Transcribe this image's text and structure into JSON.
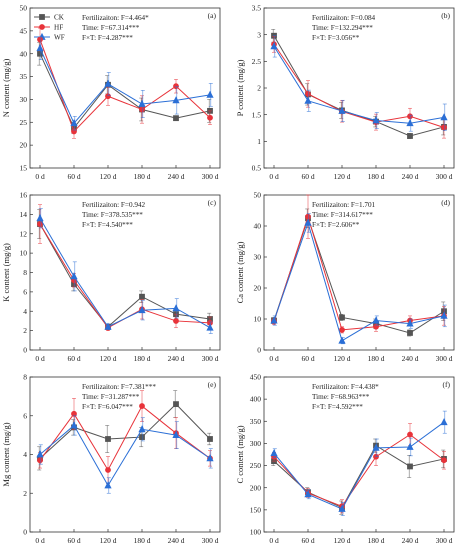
{
  "legend": [
    {
      "name": "CK",
      "color": "#555555",
      "marker": "square"
    },
    {
      "name": "HF",
      "color": "#e8333a",
      "marker": "circle"
    },
    {
      "name": "WF",
      "color": "#2b6fd6",
      "marker": "triangle"
    }
  ],
  "chart_data": [
    {
      "type": "line",
      "panel": "(a)",
      "ylabel": "N content (mg/g)",
      "ylim": [
        15,
        50
      ],
      "yticks": [
        15,
        20,
        25,
        30,
        35,
        40,
        45,
        50
      ],
      "x": [
        "0 d",
        "60 d",
        "120 d",
        "180 d",
        "240 d",
        "300 d"
      ],
      "stats": [
        "Fertilizaiton:  F=4.464*",
        "Time:  F=67.314***",
        "F×T:  F=4.287***"
      ],
      "series": [
        {
          "name": "CK",
          "values": [
            40.0,
            23.8,
            33.2,
            27.8,
            25.9,
            27.5
          ],
          "errors": [
            2.5,
            1.2,
            2.0,
            2.5,
            0.5,
            2.5
          ]
        },
        {
          "name": "HF",
          "values": [
            43.1,
            23.0,
            30.7,
            27.8,
            32.9,
            26.0
          ],
          "errors": [
            2.5,
            1.5,
            2.0,
            3.0,
            1.5,
            1.5
          ]
        },
        {
          "name": "WF",
          "values": [
            41.2,
            24.8,
            33.4,
            29.0,
            29.8,
            31.0
          ],
          "errors": [
            2.5,
            1.5,
            2.5,
            3.0,
            3.0,
            2.5
          ]
        }
      ]
    },
    {
      "type": "line",
      "panel": "(b)",
      "ylabel": "P content (mg/g)",
      "ylim": [
        0.5,
        3.5
      ],
      "yticks": [
        0.5,
        1.0,
        1.5,
        2.0,
        2.5,
        3.0,
        3.5
      ],
      "x": [
        "0 d",
        "60 d",
        "120 d",
        "180 d",
        "240 d",
        "300 d"
      ],
      "stats": [
        "Fertilizaiton:  F=0.084",
        "Time:  F=132.294***",
        "F×T:  F=3.056**"
      ],
      "series": [
        {
          "name": "CK",
          "values": [
            2.98,
            1.88,
            1.58,
            1.37,
            1.1,
            1.27
          ],
          "errors": [
            0.12,
            0.2,
            0.15,
            0.1,
            0.05,
            0.15
          ]
        },
        {
          "name": "HF",
          "values": [
            2.82,
            1.89,
            1.56,
            1.36,
            1.47,
            1.26
          ],
          "errors": [
            0.15,
            0.25,
            0.2,
            0.15,
            0.15,
            0.2
          ]
        },
        {
          "name": "WF",
          "values": [
            2.78,
            1.76,
            1.57,
            1.39,
            1.34,
            1.45
          ],
          "errors": [
            0.2,
            0.2,
            0.2,
            0.15,
            0.15,
            0.25
          ]
        }
      ]
    },
    {
      "type": "line",
      "panel": "(c)",
      "ylabel": "K content (mg/g)",
      "ylim": [
        0,
        16
      ],
      "yticks": [
        0,
        2,
        4,
        6,
        8,
        10,
        12,
        14,
        16
      ],
      "x": [
        "0 d",
        "60 d",
        "120 d",
        "180 d",
        "240 d",
        "300 d"
      ],
      "stats": [
        "Fertilizaiton:  F=0.942",
        "Time:  F=378.535***",
        "F×T:  F=4.540***"
      ],
      "series": [
        {
          "name": "CK",
          "values": [
            13.0,
            6.8,
            2.4,
            5.5,
            3.7,
            3.2
          ],
          "errors": [
            1.5,
            0.7,
            0.3,
            0.6,
            0.6,
            0.6
          ]
        },
        {
          "name": "HF",
          "values": [
            13.0,
            7.2,
            2.3,
            4.2,
            3.0,
            2.8
          ],
          "errors": [
            2.0,
            0.7,
            0.3,
            1.0,
            0.7,
            0.6
          ]
        },
        {
          "name": "WF",
          "values": [
            13.6,
            7.6,
            2.4,
            4.1,
            4.3,
            2.3
          ],
          "errors": [
            1.0,
            1.5,
            0.3,
            1.0,
            1.0,
            0.6
          ]
        }
      ]
    },
    {
      "type": "line",
      "panel": "(d)",
      "ylabel": "Ca content (mg/g)",
      "ylim": [
        0,
        50
      ],
      "yticks": [
        0,
        10,
        20,
        30,
        40,
        50
      ],
      "x": [
        "0 d",
        "60 d",
        "120 d",
        "180 d",
        "240 d",
        "300 d"
      ],
      "stats": [
        "Fertilizaiton:  F=1.701",
        "Time:  F=314.617***",
        "F×T:  F=2.606**"
      ],
      "series": [
        {
          "name": "CK",
          "values": [
            9.5,
            42.5,
            10.5,
            8.5,
            5.5,
            12.5
          ],
          "errors": [
            1.0,
            3.0,
            1.0,
            1.5,
            1.0,
            3.0
          ]
        },
        {
          "name": "HF",
          "values": [
            9.2,
            43.0,
            6.5,
            7.5,
            9.5,
            11.0
          ],
          "errors": [
            1.0,
            7.0,
            1.0,
            1.5,
            1.5,
            3.0
          ]
        },
        {
          "name": "WF",
          "values": [
            9.5,
            41.0,
            3.0,
            9.5,
            8.5,
            11.0
          ],
          "errors": [
            1.5,
            3.0,
            1.0,
            1.5,
            1.5,
            3.5
          ]
        }
      ]
    },
    {
      "type": "line",
      "panel": "(e)",
      "ylabel": "Mg content (mg/g)",
      "ylim": [
        0,
        8
      ],
      "yticks": [
        0,
        2,
        4,
        6,
        8
      ],
      "x": [
        "0 d",
        "60 d",
        "120 d",
        "180 d",
        "240 d",
        "300 d"
      ],
      "stats": [
        "Fertilizaiton:  F=7.381***",
        "Time:  F=31.287***",
        "F×T:  F=6.047***"
      ],
      "series": [
        {
          "name": "CK",
          "values": [
            3.8,
            5.4,
            4.8,
            4.9,
            6.6,
            4.8
          ],
          "errors": [
            0.6,
            0.4,
            0.7,
            0.5,
            0.7,
            0.3
          ]
        },
        {
          "name": "HF",
          "values": [
            3.7,
            6.1,
            3.2,
            6.5,
            5.1,
            3.8
          ],
          "errors": [
            0.4,
            0.8,
            0.7,
            0.8,
            0.8,
            0.4
          ]
        },
        {
          "name": "WF",
          "values": [
            4.0,
            5.5,
            2.4,
            5.3,
            5.0,
            3.8
          ],
          "errors": [
            0.5,
            0.5,
            0.4,
            0.6,
            0.7,
            0.5
          ]
        }
      ]
    },
    {
      "type": "line",
      "panel": "(f)",
      "ylabel": "C content (mg/g)",
      "ylim": [
        100,
        450
      ],
      "yticks": [
        100,
        150,
        200,
        250,
        300,
        350,
        400,
        450
      ],
      "x": [
        "0 d",
        "60 d",
        "120 d",
        "180 d",
        "240 d",
        "300 d"
      ],
      "stats": [
        "Fertilizaiton:  F=4.438*",
        "Time:  F=68.963***",
        "F×T:  F=4.592***"
      ],
      "series": [
        {
          "name": "CK",
          "values": [
            260,
            190,
            155,
            295,
            248,
            265
          ],
          "errors": [
            10,
            10,
            15,
            15,
            25,
            20
          ]
        },
        {
          "name": "HF",
          "values": [
            270,
            188,
            158,
            270,
            320,
            262
          ],
          "errors": [
            10,
            10,
            15,
            20,
            25,
            20
          ]
        },
        {
          "name": "WF",
          "values": [
            278,
            185,
            152,
            290,
            292,
            348
          ],
          "errors": [
            10,
            10,
            15,
            20,
            20,
            25
          ]
        }
      ]
    }
  ]
}
